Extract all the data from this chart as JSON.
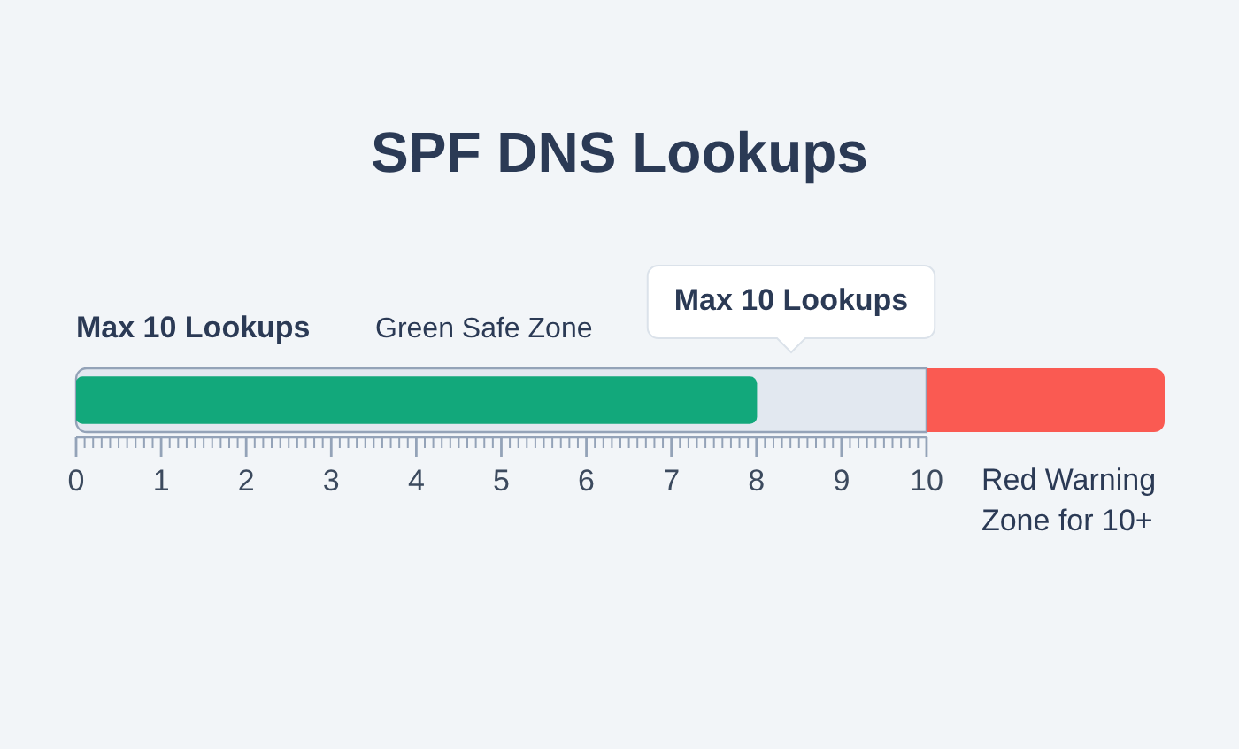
{
  "chart_data": {
    "type": "bar",
    "orientation": "horizontal",
    "title": "SPF DNS Lookups",
    "categories": [
      null
    ],
    "values": [
      8
    ],
    "color": "#12a87b",
    "xlim": [
      0,
      12.8
    ],
    "xticks": [
      0,
      {
        "value": 0.1,
        "label": null
      },
      {
        "value": 0.2,
        "label": null
      },
      {
        "value": 0.3,
        "label": null
      },
      {
        "value": 0.4,
        "label": null
      },
      {
        "value": 0.5,
        "label": null
      },
      {
        "value": 0.6,
        "label": null
      },
      {
        "value": 0.7,
        "label": null
      },
      {
        "value": 0.8,
        "label": null
      },
      {
        "value": 0.9,
        "label": null
      },
      1,
      {
        "value": 1.1,
        "label": null
      },
      {
        "value": 1.2,
        "label": null
      },
      {
        "value": 1.3,
        "label": null
      },
      {
        "value": 1.4,
        "label": null
      },
      {
        "value": 1.5,
        "label": null
      },
      {
        "value": 1.6,
        "label": null
      },
      {
        "value": 1.7,
        "label": null
      },
      {
        "value": 1.8,
        "label": null
      },
      {
        "value": 1.9,
        "label": null
      },
      2,
      {
        "value": 2.1,
        "label": null
      },
      {
        "value": 2.2,
        "label": null
      },
      {
        "value": 2.3,
        "label": null
      },
      {
        "value": 2.4,
        "label": null
      },
      {
        "value": 2.5,
        "label": null
      },
      {
        "value": 2.6,
        "label": null
      },
      {
        "value": 2.7,
        "label": null
      },
      {
        "value": 2.8,
        "label": null
      },
      {
        "value": 2.9,
        "label": null
      },
      3,
      {
        "value": 3.1,
        "label": null
      },
      {
        "value": 3.2,
        "label": null
      },
      {
        "value": 3.3,
        "label": null
      },
      {
        "value": 3.4,
        "label": null
      },
      {
        "value": 3.5,
        "label": null
      },
      {
        "value": 3.6,
        "label": null
      },
      {
        "value": 3.7,
        "label": null
      },
      {
        "value": 3.8,
        "label": null
      },
      {
        "value": 3.9,
        "label": null
      },
      4,
      {
        "value": 4.1,
        "label": null
      },
      {
        "value": 4.2,
        "label": null
      },
      {
        "value": 4.3,
        "label": null
      },
      {
        "value": 4.4,
        "label": null
      },
      {
        "value": 4.5,
        "label": null
      },
      {
        "value": 4.6,
        "label": null
      },
      {
        "value": 4.7,
        "label": null
      },
      {
        "value": 4.8,
        "label": null
      },
      {
        "value": 4.9,
        "label": null
      },
      5,
      {
        "value": 5.1,
        "label": null
      },
      {
        "value": 5.2,
        "label": null
      },
      {
        "value": 5.3,
        "label": null
      },
      {
        "value": 5.4,
        "label": null
      },
      {
        "value": 5.5,
        "label": null
      },
      {
        "value": 5.6,
        "label": null
      },
      {
        "value": 5.7,
        "label": null
      },
      {
        "value": 5.8,
        "label": null
      },
      {
        "value": 5.9,
        "label": null
      },
      6,
      {
        "value": 6.1,
        "label": null
      },
      {
        "value": 6.2,
        "label": null
      },
      {
        "value": 6.3,
        "label": null
      },
      {
        "value": 6.4,
        "label": null
      },
      {
        "value": 6.5,
        "label": null
      },
      {
        "value": 6.6,
        "label": null
      },
      {
        "value": 6.7,
        "label": null
      },
      {
        "value": 6.8,
        "label": null
      },
      {
        "value": 6.9,
        "label": null
      },
      7,
      {
        "value": 7.1,
        "label": null
      },
      {
        "value": 7.2,
        "label": null
      },
      {
        "value": 7.3,
        "label": null
      },
      {
        "value": 7.4,
        "label": null
      },
      {
        "value": 7.5,
        "label": null
      },
      {
        "value": 7.6,
        "label": null
      },
      {
        "value": 7.7,
        "label": null
      },
      {
        "value": 7.8,
        "label": null
      },
      {
        "value": 7.9,
        "label": null
      },
      8,
      {
        "value": 8.1,
        "label": null
      },
      {
        "value": 8.2,
        "label": null
      },
      {
        "value": 8.3,
        "label": null
      },
      {
        "value": 8.4,
        "label": null
      },
      {
        "value": 8.5,
        "label": null
      },
      {
        "value": 8.6,
        "label": null
      },
      {
        "value": 8.7,
        "label": null
      },
      {
        "value": 8.8,
        "label": null
      },
      {
        "value": 8.9,
        "label": null
      },
      9,
      {
        "value": 9.1,
        "label": null
      },
      {
        "value": 9.2,
        "label": null
      },
      {
        "value": 9.3,
        "label": null
      },
      {
        "value": 9.4,
        "label": null
      },
      {
        "value": 9.5,
        "label": null
      },
      {
        "value": 9.6,
        "label": null
      },
      {
        "value": 9.7,
        "label": null
      },
      {
        "value": 9.8,
        "label": null
      },
      {
        "value": 9.9,
        "label": null
      },
      10
    ],
    "bands": [
      {
        "axis": "x",
        "from": 0,
        "to": 10,
        "label": "Green Safe Zone",
        "color": "#e2e8f0"
      },
      {
        "axis": "x",
        "from": 10,
        "to": 12.8,
        "label": "Red Warning Zone for 10+",
        "color": "#fa5a52"
      }
    ],
    "annotations": [
      "Max 10 Lookups",
      "Max 10 Lookups"
    ],
    "tick_labels": "x"
  }
}
